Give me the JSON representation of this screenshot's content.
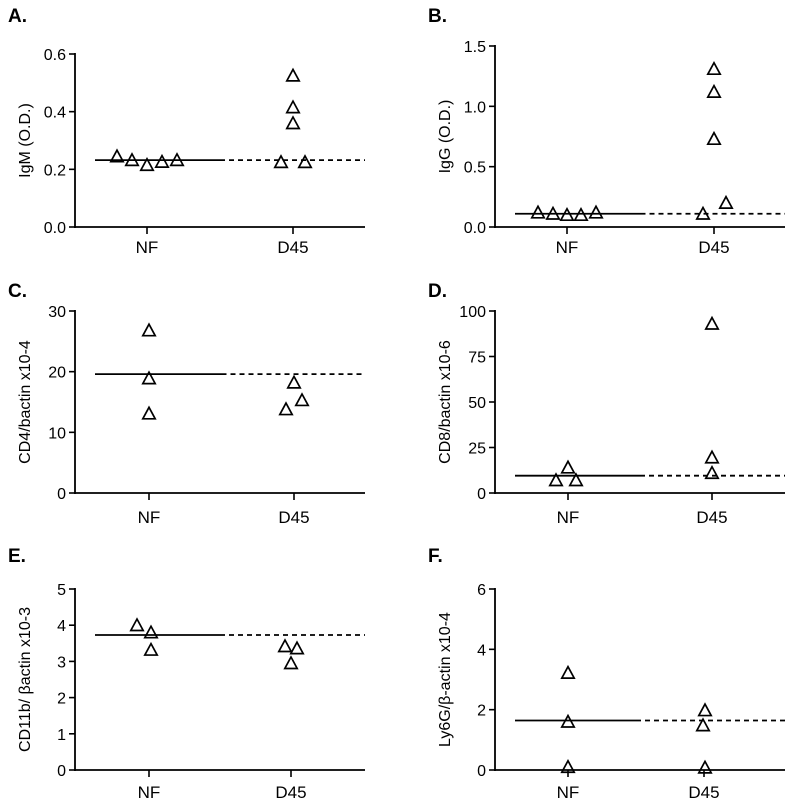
{
  "chart_data": [
    {
      "panel": "A.",
      "type": "scatter",
      "ylabel": "IgM (O.D.)",
      "categories": [
        "NF",
        "D45"
      ],
      "ylim": [
        0,
        0.6
      ],
      "yticks": [
        "0.0",
        "0.2",
        "0.4",
        "0.6"
      ],
      "points": {
        "NF": [
          0.245,
          0.232,
          0.215,
          0.226,
          0.232
        ],
        "D45": [
          0.525,
          0.415,
          0.36,
          0.225,
          0.225
        ]
      },
      "mean_line": 0.232
    },
    {
      "panel": "B.",
      "type": "scatter",
      "ylabel": "IgG (O.D.)",
      "categories": [
        "NF",
        "D45"
      ],
      "ylim": [
        0,
        1.5
      ],
      "yticks": [
        "0.0",
        "0.5",
        "1.0",
        "1.5"
      ],
      "points": {
        "NF": [
          0.12,
          0.11,
          0.1,
          0.1,
          0.12
        ],
        "D45": [
          1.31,
          1.12,
          0.73,
          0.11,
          0.2
        ]
      },
      "mean_line": 0.11
    },
    {
      "panel": "C.",
      "type": "scatter",
      "ylabel": "CD4/bactin x10-4",
      "categories": [
        "NF",
        "D45"
      ],
      "ylim": [
        0,
        30
      ],
      "yticks": [
        "0",
        "10",
        "20",
        "30"
      ],
      "points": {
        "NF": [
          26.8,
          18.9,
          13.1
        ],
        "D45": [
          18.2,
          13.8,
          15.3
        ]
      },
      "mean_line": 19.6
    },
    {
      "panel": "D.",
      "type": "scatter",
      "ylabel": "CD8/bactin x10-6",
      "categories": [
        "NF",
        "D45"
      ],
      "ylim": [
        0,
        100
      ],
      "yticks": [
        "0",
        "25",
        "50",
        "75",
        "100"
      ],
      "points": {
        "NF": [
          14,
          7,
          7
        ],
        "D45": [
          93,
          19.5,
          11
        ]
      },
      "mean_line": 9.5
    },
    {
      "panel": "E.",
      "type": "scatter",
      "ylabel": "CD11b/ βactin x10-3",
      "categories": [
        "NF",
        "D45"
      ],
      "ylim": [
        0,
        5
      ],
      "yticks": [
        "0",
        "1",
        "2",
        "3",
        "4",
        "5"
      ],
      "points": {
        "NF": [
          4.0,
          3.8,
          3.32
        ],
        "D45": [
          3.42,
          3.36,
          2.95
        ]
      },
      "mean_line": 3.73
    },
    {
      "panel": "F.",
      "type": "scatter",
      "ylabel": "Ly6G/β-actin x10-4",
      "categories": [
        "NF",
        "D45"
      ],
      "ylim": [
        0,
        6
      ],
      "yticks": [
        "0",
        "2",
        "4",
        "6"
      ],
      "points": {
        "NF": [
          3.22,
          1.6,
          0.1
        ],
        "D45": [
          1.98,
          1.48,
          0.08
        ]
      },
      "mean_line": 1.64
    }
  ]
}
